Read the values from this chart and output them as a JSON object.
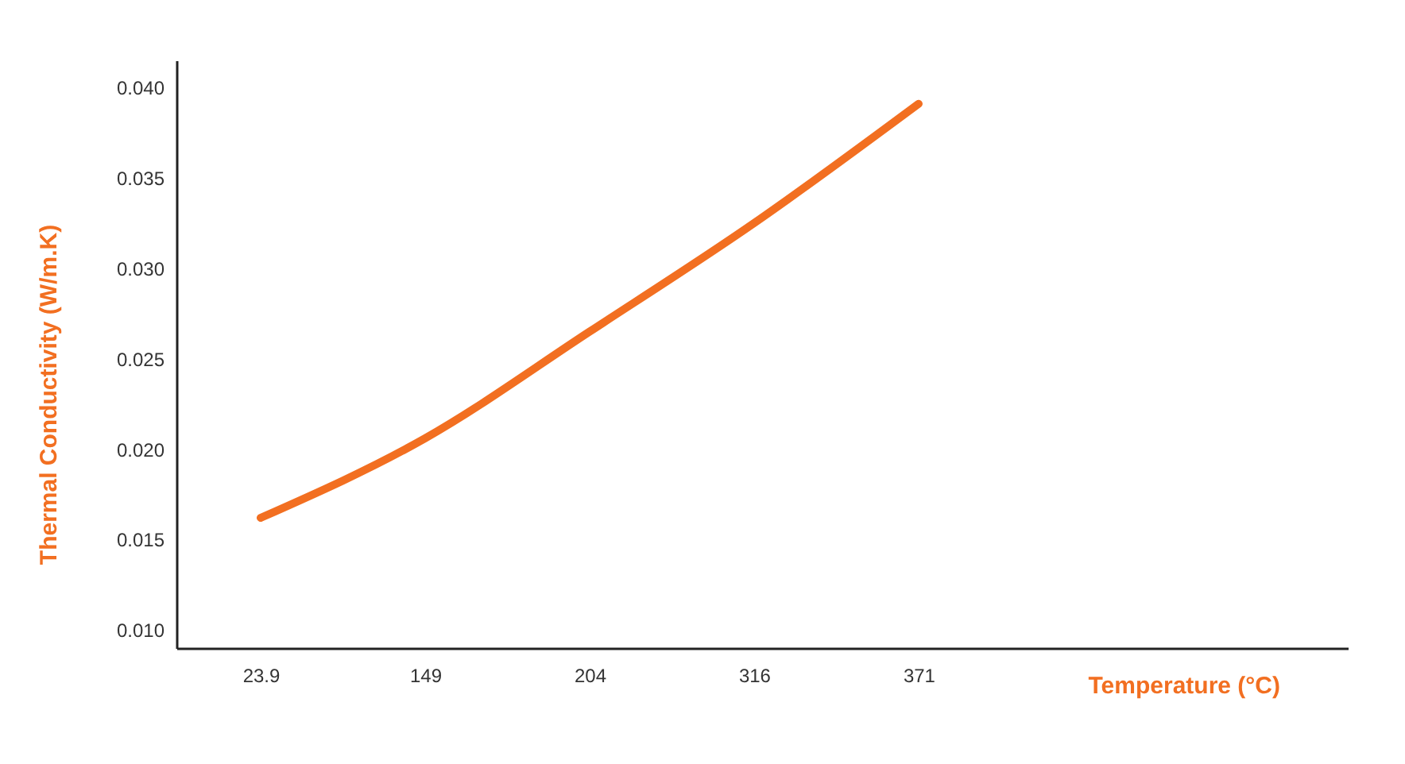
{
  "chart_data": {
    "type": "line",
    "xlabel": "Temperature (°C)",
    "ylabel": "Thermal Conductivity (W/m.K)",
    "categories": [
      "23.9",
      "149",
      "204",
      "316",
      "371"
    ],
    "series": [
      {
        "color": "#f26f21",
        "values": [
          0.0162,
          0.0206,
          0.0265,
          0.0325,
          0.0391
        ]
      }
    ],
    "ylim": [
      0.009,
      0.0415
    ],
    "yticks": [
      {
        "value": 0.01,
        "label": "0.010"
      },
      {
        "value": 0.015,
        "label": "0.015"
      },
      {
        "value": 0.02,
        "label": "0.020"
      },
      {
        "value": 0.025,
        "label": "0.025"
      },
      {
        "value": 0.03,
        "label": "0.030"
      },
      {
        "value": 0.035,
        "label": "0.035"
      },
      {
        "value": 0.04,
        "label": "0.040"
      }
    ],
    "grid": false,
    "marker": "none",
    "line_style": "solid"
  }
}
